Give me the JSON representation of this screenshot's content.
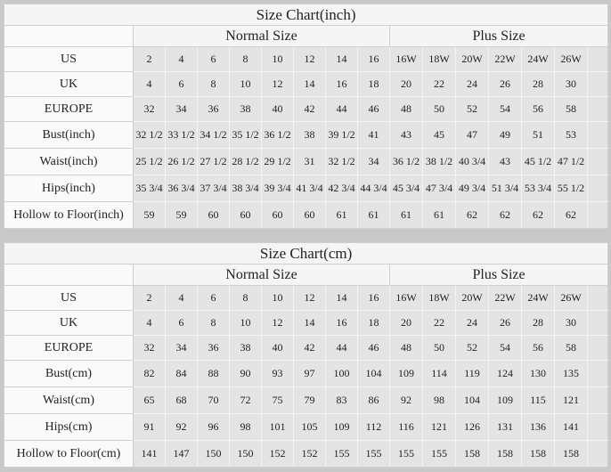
{
  "page": {
    "background": "#c9c9c9"
  },
  "colors": {
    "table_background": "#fbfbfb",
    "header_background": "#f5f5f5",
    "label_cell_background": "#fafafa",
    "data_cell_background": "#e4e4e4",
    "grid_dark": "#cfcfcf",
    "grid_light": "#f4f4f4",
    "text": "#222222"
  },
  "tables": [
    {
      "title": "Size Chart(inch)",
      "column_groups": {
        "normal": "Normal Size",
        "plus": "Plus Size"
      },
      "rows": [
        {
          "label": "US",
          "normal": [
            "2",
            "4",
            "6",
            "8",
            "10",
            "12",
            "14",
            "16"
          ],
          "plus": [
            "16W",
            "18W",
            "20W",
            "22W",
            "24W",
            "26W"
          ]
        },
        {
          "label": "UK",
          "normal": [
            "4",
            "6",
            "8",
            "10",
            "12",
            "14",
            "16",
            "18"
          ],
          "plus": [
            "20",
            "22",
            "24",
            "26",
            "28",
            "30"
          ]
        },
        {
          "label": "EUROPE",
          "normal": [
            "32",
            "34",
            "36",
            "38",
            "40",
            "42",
            "44",
            "46"
          ],
          "plus": [
            "48",
            "50",
            "52",
            "54",
            "56",
            "58"
          ]
        },
        {
          "label": "Bust(inch)",
          "normal": [
            "32 1/2",
            "33 1/2",
            "34 1/2",
            "35 1/2",
            "36 1/2",
            "38",
            "39 1/2",
            "41"
          ],
          "plus": [
            "43",
            "45",
            "47",
            "49",
            "51",
            "53"
          ]
        },
        {
          "label": "Waist(inch)",
          "normal": [
            "25 1/2",
            "26 1/2",
            "27 1/2",
            "28 1/2",
            "29 1/2",
            "31",
            "32 1/2",
            "34"
          ],
          "plus": [
            "36 1/2",
            "38 1/2",
            "40 3/4",
            "43",
            "45 1/2",
            "47 1/2"
          ]
        },
        {
          "label": "Hips(inch)",
          "normal": [
            "35 3/4",
            "36 3/4",
            "37 3/4",
            "38 3/4",
            "39 3/4",
            "41 3/4",
            "42 3/4",
            "44 3/4"
          ],
          "plus": [
            "45 3/4",
            "47 3/4",
            "49 3/4",
            "51 3/4",
            "53 3/4",
            "55 1/2"
          ]
        },
        {
          "label": "Hollow to Floor(inch)",
          "normal": [
            "59",
            "59",
            "60",
            "60",
            "60",
            "60",
            "61",
            "61"
          ],
          "plus": [
            "61",
            "61",
            "62",
            "62",
            "62",
            "62"
          ]
        }
      ]
    },
    {
      "title": "Size Chart(cm)",
      "column_groups": {
        "normal": "Normal Size",
        "plus": "Plus Size"
      },
      "rows": [
        {
          "label": "US",
          "normal": [
            "2",
            "4",
            "6",
            "8",
            "10",
            "12",
            "14",
            "16"
          ],
          "plus": [
            "16W",
            "18W",
            "20W",
            "22W",
            "24W",
            "26W"
          ]
        },
        {
          "label": "UK",
          "normal": [
            "4",
            "6",
            "8",
            "10",
            "12",
            "14",
            "16",
            "18"
          ],
          "plus": [
            "20",
            "22",
            "24",
            "26",
            "28",
            "30"
          ]
        },
        {
          "label": "EUROPE",
          "normal": [
            "32",
            "34",
            "36",
            "38",
            "40",
            "42",
            "44",
            "46"
          ],
          "plus": [
            "48",
            "50",
            "52",
            "54",
            "56",
            "58"
          ]
        },
        {
          "label": "Bust(cm)",
          "normal": [
            "82",
            "84",
            "88",
            "90",
            "93",
            "97",
            "100",
            "104"
          ],
          "plus": [
            "109",
            "114",
            "119",
            "124",
            "130",
            "135"
          ]
        },
        {
          "label": "Waist(cm)",
          "normal": [
            "65",
            "68",
            "70",
            "72",
            "75",
            "79",
            "83",
            "86"
          ],
          "plus": [
            "92",
            "98",
            "104",
            "109",
            "115",
            "121"
          ]
        },
        {
          "label": "Hips(cm)",
          "normal": [
            "91",
            "92",
            "96",
            "98",
            "101",
            "105",
            "109",
            "112"
          ],
          "plus": [
            "116",
            "121",
            "126",
            "131",
            "136",
            "141"
          ]
        },
        {
          "label": "Hollow to Floor(cm)",
          "normal": [
            "141",
            "147",
            "150",
            "150",
            "152",
            "152",
            "155",
            "155"
          ],
          "plus": [
            "155",
            "155",
            "158",
            "158",
            "158",
            "158"
          ]
        }
      ]
    }
  ]
}
